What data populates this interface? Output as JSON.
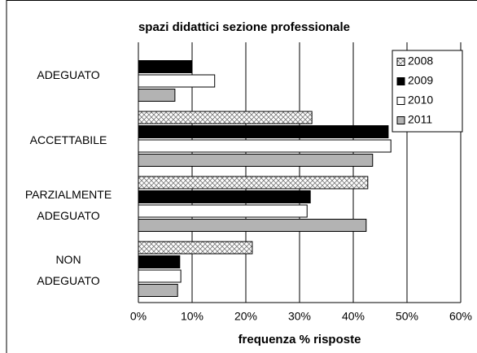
{
  "chart_data": {
    "type": "hbar",
    "title": "spazi didattici sezione professionale",
    "xlabel": "frequenza % risposte",
    "categories": [
      "ADEGUATO",
      "ACCETTABILE",
      "PARZIALMENTE\nADEGUATO",
      "NON\nADEGUATO"
    ],
    "series": [
      {
        "name": "2008",
        "color": "#ffffff",
        "pattern": "crosshatch",
        "values": [
          0,
          32.3,
          42.7,
          21.2
        ]
      },
      {
        "name": "2009",
        "color": "#000000",
        "values": [
          10,
          46.5,
          32,
          7.7
        ]
      },
      {
        "name": "2010",
        "color": "#ffffff",
        "values": [
          14.2,
          47,
          31.4,
          7.9
        ]
      },
      {
        "name": "2011",
        "color": "#b3b3b3",
        "values": [
          6.8,
          43.6,
          42.4,
          7.3
        ]
      }
    ],
    "xlim": [
      0,
      60
    ],
    "xticks": [
      {
        "value": 0,
        "label": "0%"
      },
      {
        "value": 10,
        "label": "10%"
      },
      {
        "value": 20,
        "label": "20%"
      },
      {
        "value": 30,
        "label": "30%"
      },
      {
        "value": 40,
        "label": "40%"
      },
      {
        "value": 50,
        "label": "50%"
      },
      {
        "value": 60,
        "label": "60%"
      }
    ],
    "grid": true,
    "legend": "upper right"
  }
}
